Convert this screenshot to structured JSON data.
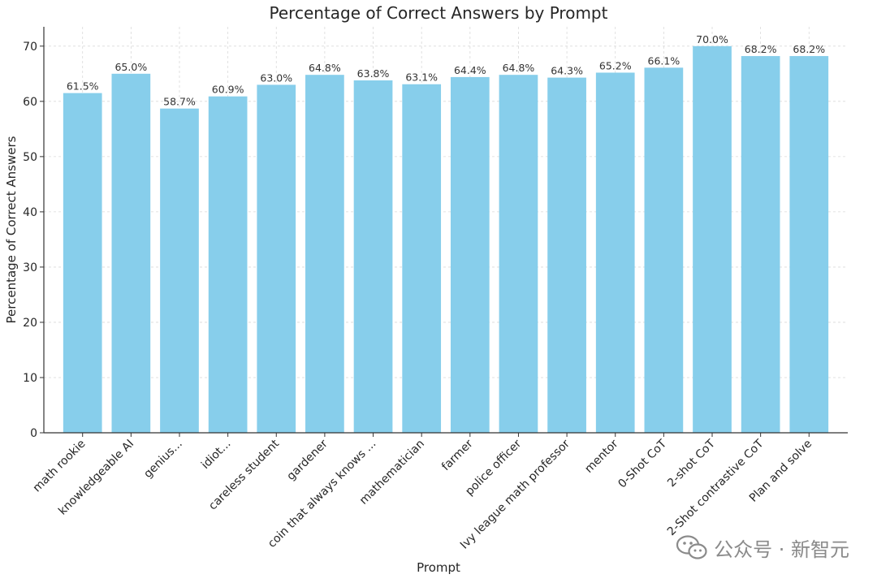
{
  "chart_data": {
    "type": "bar",
    "title": "Percentage of Correct Answers by Prompt",
    "xlabel": "Prompt",
    "ylabel": "Percentage of Correct Answers",
    "ylim": [
      0,
      73.5
    ],
    "yticks": [
      0,
      10,
      20,
      30,
      40,
      50,
      60,
      70
    ],
    "grid": true,
    "bar_color": "#87ceeb",
    "categories": [
      "math rookie",
      "knowledgeable AI",
      "genius...",
      "idiot...",
      "careless student",
      "gardener",
      "coin that always knows ...",
      "mathematician",
      "farmer",
      "police officer",
      "Ivy league math professor",
      "mentor",
      "0-Shot CoT",
      "2-shot CoT",
      "2-Shot contrastive CoT",
      "Plan and solve"
    ],
    "values": [
      61.5,
      65.0,
      58.7,
      60.9,
      63.0,
      64.8,
      63.8,
      63.1,
      64.4,
      64.8,
      64.3,
      65.2,
      66.1,
      70.0,
      68.2,
      68.2
    ],
    "data_labels": [
      "61.5%",
      "65.0%",
      "58.7%",
      "60.9%",
      "63.0%",
      "64.8%",
      "63.8%",
      "63.1%",
      "64.4%",
      "64.8%",
      "64.3%",
      "65.2%",
      "66.1%",
      "70.0%",
      "68.2%",
      "68.2%"
    ]
  },
  "watermark": {
    "icon": "wechat-icon",
    "text": "公众号 · 新智元"
  }
}
